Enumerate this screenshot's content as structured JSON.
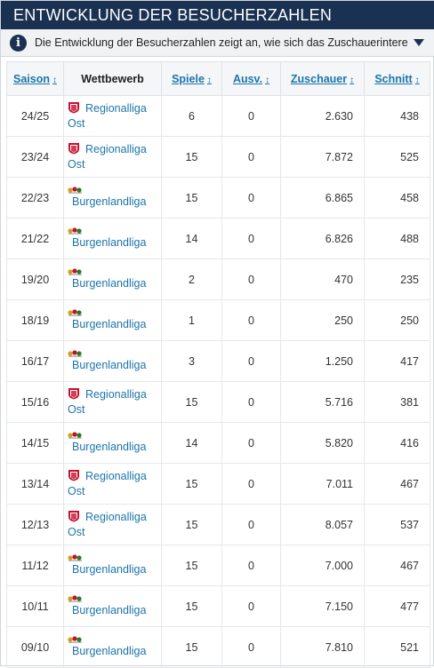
{
  "header": {
    "title": "ENTWICKLUNG DER BESUCHERZAHLEN"
  },
  "info": {
    "text": "Die Entwicklung der Besucherzahlen zeigt an, wie sich das Zuschauerinteresse an e..."
  },
  "table": {
    "columns": [
      {
        "label": "Saison",
        "sortable": true
      },
      {
        "label": "Wettbewerb",
        "sortable": false
      },
      {
        "label": "Spiele",
        "sortable": true
      },
      {
        "label": "Ausv.",
        "sortable": true
      },
      {
        "label": "Zuschauer",
        "sortable": true
      },
      {
        "label": "Schnitt",
        "sortable": true
      }
    ],
    "sort_arrow": "↕",
    "rows": [
      {
        "saison": "24/25",
        "competition": "Regionalliga Ost",
        "comp_line1": "Regionalliga",
        "comp_line2": "Ost",
        "logo": "ost",
        "spiele": "6",
        "ausv": "0",
        "zuschauer": "2.630",
        "schnitt": "438"
      },
      {
        "saison": "23/24",
        "competition": "Regionalliga Ost",
        "comp_line1": "Regionalliga",
        "comp_line2": "Ost",
        "logo": "ost",
        "spiele": "15",
        "ausv": "0",
        "zuschauer": "7.872",
        "schnitt": "525"
      },
      {
        "saison": "22/23",
        "competition": "Burgenlandliga",
        "comp_line1": "Burgenlandliga",
        "comp_line2": "",
        "logo": "bgl",
        "spiele": "15",
        "ausv": "0",
        "zuschauer": "6.865",
        "schnitt": "458"
      },
      {
        "saison": "21/22",
        "competition": "Burgenlandliga",
        "comp_line1": "Burgenlandliga",
        "comp_line2": "",
        "logo": "bgl",
        "spiele": "14",
        "ausv": "0",
        "zuschauer": "6.826",
        "schnitt": "488"
      },
      {
        "saison": "19/20",
        "competition": "Burgenlandliga",
        "comp_line1": "Burgenlandliga",
        "comp_line2": "",
        "logo": "bgl",
        "spiele": "2",
        "ausv": "0",
        "zuschauer": "470",
        "schnitt": "235"
      },
      {
        "saison": "18/19",
        "competition": "Burgenlandliga",
        "comp_line1": "Burgenlandliga",
        "comp_line2": "",
        "logo": "bgl",
        "spiele": "1",
        "ausv": "0",
        "zuschauer": "250",
        "schnitt": "250"
      },
      {
        "saison": "16/17",
        "competition": "Burgenlandliga",
        "comp_line1": "Burgenlandliga",
        "comp_line2": "",
        "logo": "bgl",
        "spiele": "3",
        "ausv": "0",
        "zuschauer": "1.250",
        "schnitt": "417"
      },
      {
        "saison": "15/16",
        "competition": "Regionalliga Ost",
        "comp_line1": "Regionalliga",
        "comp_line2": "Ost",
        "logo": "ost",
        "spiele": "15",
        "ausv": "0",
        "zuschauer": "5.716",
        "schnitt": "381"
      },
      {
        "saison": "14/15",
        "competition": "Burgenlandliga",
        "comp_line1": "Burgenlandliga",
        "comp_line2": "",
        "logo": "bgl",
        "spiele": "14",
        "ausv": "0",
        "zuschauer": "5.820",
        "schnitt": "416"
      },
      {
        "saison": "13/14",
        "competition": "Regionalliga Ost",
        "comp_line1": "Regionalliga",
        "comp_line2": "Ost",
        "logo": "ost",
        "spiele": "15",
        "ausv": "0",
        "zuschauer": "7.011",
        "schnitt": "467"
      },
      {
        "saison": "12/13",
        "competition": "Regionalliga Ost",
        "comp_line1": "Regionalliga",
        "comp_line2": "Ost",
        "logo": "ost",
        "spiele": "15",
        "ausv": "0",
        "zuschauer": "8.057",
        "schnitt": "537"
      },
      {
        "saison": "11/12",
        "competition": "Burgenlandliga",
        "comp_line1": "Burgenlandliga",
        "comp_line2": "",
        "logo": "bgl",
        "spiele": "15",
        "ausv": "0",
        "zuschauer": "7.000",
        "schnitt": "467"
      },
      {
        "saison": "10/11",
        "competition": "Burgenlandliga",
        "comp_line1": "Burgenlandliga",
        "comp_line2": "",
        "logo": "bgl",
        "spiele": "15",
        "ausv": "0",
        "zuschauer": "7.150",
        "schnitt": "477"
      },
      {
        "saison": "09/10",
        "competition": "Burgenlandliga",
        "comp_line1": "Burgenlandliga",
        "comp_line2": "",
        "logo": "bgl",
        "spiele": "15",
        "ausv": "0",
        "zuschauer": "7.810",
        "schnitt": "521"
      }
    ]
  },
  "colors": {
    "header_bg": "#1a3151",
    "link": "#1d75a9",
    "ost_logo": "#c8102e"
  }
}
